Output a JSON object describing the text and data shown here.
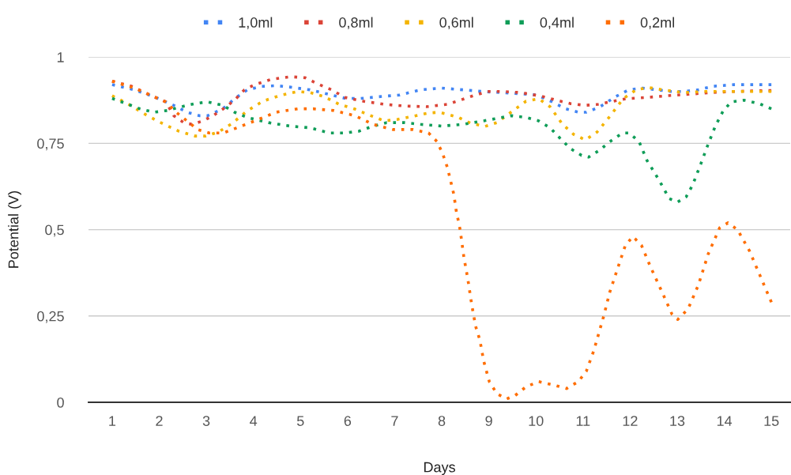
{
  "chart_data": {
    "type": "line",
    "xlabel": "Days",
    "ylabel": "Potential (V)",
    "xlim": [
      0.5,
      15.4
    ],
    "xticks": [
      1,
      2,
      3,
      4,
      5,
      6,
      7,
      8,
      9,
      10,
      11,
      12,
      13,
      14,
      15
    ],
    "ylim": [
      0,
      1
    ],
    "yticks": [
      {
        "value": 0,
        "label": "0"
      },
      {
        "value": 0.25,
        "label": "0,25"
      },
      {
        "value": 0.5,
        "label": "0,5"
      },
      {
        "value": 0.75,
        "label": "0,75"
      },
      {
        "value": 1,
        "label": "1"
      }
    ],
    "grid": "y",
    "legend": "top",
    "marker": "none",
    "line_style": "dotted",
    "series": [
      {
        "name": "1,0ml",
        "color": "#4285f4",
        "x": [
          1,
          1.47,
          1.89,
          2.31,
          2.59,
          2.86,
          3.03,
          3.35,
          3.61,
          3.87,
          4.18,
          4.48,
          4.77,
          5.2,
          5.66,
          5.96,
          6.28,
          6.66,
          7.11,
          7.55,
          8,
          8.45,
          8.89,
          9.48,
          10.01,
          10.35,
          10.63,
          10.9,
          11.07,
          11.35,
          11.69,
          11.97,
          12.27,
          12.57,
          12.86,
          13.14,
          13.45,
          13.75,
          14.2,
          14.65,
          15
        ],
        "values": [
          0.92,
          0.905,
          0.885,
          0.86,
          0.84,
          0.83,
          0.83,
          0.85,
          0.88,
          0.905,
          0.915,
          0.917,
          0.913,
          0.905,
          0.89,
          0.88,
          0.88,
          0.885,
          0.89,
          0.905,
          0.91,
          0.905,
          0.9,
          0.895,
          0.89,
          0.87,
          0.85,
          0.84,
          0.84,
          0.855,
          0.885,
          0.905,
          0.91,
          0.905,
          0.9,
          0.9,
          0.905,
          0.915,
          0.92,
          0.92,
          0.92
        ]
      },
      {
        "name": "0,8ml",
        "color": "#db4437",
        "x": [
          1,
          1.42,
          1.8,
          2.14,
          2.31,
          2.52,
          2.69,
          2.93,
          3.14,
          3.36,
          3.6,
          3.81,
          4.03,
          4.37,
          4.79,
          5.1,
          5.37,
          5.66,
          5.94,
          6.33,
          6.78,
          7.21,
          7.67,
          8.12,
          8.39,
          8.67,
          8.97,
          9.29,
          9.68,
          10.13,
          10.46,
          10.73,
          11.05,
          11.32,
          11.64,
          11.91,
          12.36,
          12.81,
          13.24,
          13.7,
          14.15,
          14.7,
          15
        ],
        "values": [
          0.93,
          0.915,
          0.89,
          0.87,
          0.83,
          0.81,
          0.805,
          0.815,
          0.83,
          0.85,
          0.875,
          0.905,
          0.92,
          0.935,
          0.943,
          0.94,
          0.922,
          0.905,
          0.883,
          0.872,
          0.863,
          0.858,
          0.856,
          0.863,
          0.875,
          0.888,
          0.9,
          0.9,
          0.897,
          0.886,
          0.874,
          0.865,
          0.86,
          0.863,
          0.872,
          0.879,
          0.883,
          0.888,
          0.892,
          0.897,
          0.9,
          0.902,
          0.903
        ]
      },
      {
        "name": "0,6ml",
        "color": "#f4b400",
        "x": [
          1,
          1.35,
          1.75,
          2.09,
          2.42,
          2.76,
          2.98,
          3.26,
          3.53,
          3.87,
          4.2,
          4.6,
          4.94,
          5.2,
          5.49,
          5.82,
          6.16,
          6.44,
          6.78,
          7.05,
          7.38,
          7.72,
          7.95,
          8.34,
          8.62,
          8.92,
          9.17,
          9.51,
          9.79,
          10.06,
          10.3,
          10.56,
          10.8,
          11.05,
          11.3,
          11.57,
          11.85,
          12.14,
          12.41,
          12.74,
          13.14,
          13.58,
          14.3,
          15
        ],
        "values": [
          0.888,
          0.863,
          0.83,
          0.806,
          0.785,
          0.771,
          0.771,
          0.783,
          0.806,
          0.844,
          0.872,
          0.89,
          0.9,
          0.897,
          0.886,
          0.863,
          0.849,
          0.833,
          0.815,
          0.819,
          0.828,
          0.838,
          0.84,
          0.826,
          0.808,
          0.799,
          0.81,
          0.844,
          0.872,
          0.879,
          0.856,
          0.806,
          0.776,
          0.76,
          0.783,
          0.828,
          0.879,
          0.906,
          0.911,
          0.904,
          0.897,
          0.9,
          0.9,
          0.9
        ]
      },
      {
        "name": "0,4ml",
        "color": "#0f9d58",
        "x": [
          1,
          1.3,
          1.59,
          1.89,
          2.17,
          2.44,
          2.76,
          3.03,
          3.35,
          3.6,
          3.87,
          4.32,
          4.77,
          5.2,
          5.62,
          5.94,
          6.24,
          6.54,
          6.83,
          7.21,
          7.55,
          8,
          8.45,
          8.89,
          9.48,
          9.79,
          10.06,
          10.3,
          10.51,
          10.73,
          10.97,
          11.12,
          11.35,
          11.57,
          11.84,
          11.98,
          12.19,
          12.36,
          12.52,
          12.67,
          12.83,
          13.01,
          13.19,
          13.33,
          13.5,
          13.65,
          13.81,
          13.98,
          14.15,
          14.42,
          14.74,
          15
        ],
        "values": [
          0.88,
          0.865,
          0.85,
          0.84,
          0.845,
          0.855,
          0.865,
          0.87,
          0.86,
          0.84,
          0.825,
          0.81,
          0.8,
          0.795,
          0.78,
          0.78,
          0.785,
          0.8,
          0.81,
          0.81,
          0.805,
          0.8,
          0.805,
          0.815,
          0.83,
          0.825,
          0.815,
          0.795,
          0.765,
          0.735,
          0.715,
          0.71,
          0.73,
          0.755,
          0.78,
          0.78,
          0.755,
          0.7,
          0.665,
          0.63,
          0.59,
          0.58,
          0.595,
          0.63,
          0.69,
          0.745,
          0.8,
          0.845,
          0.87,
          0.875,
          0.865,
          0.85
        ]
      },
      {
        "name": "0,2ml",
        "color": "#ff6d01",
        "x": [
          1,
          1.47,
          1.89,
          2.14,
          2.36,
          2.59,
          2.81,
          3.06,
          3.36,
          3.65,
          4.03,
          4.48,
          4.94,
          5.27,
          5.71,
          6.16,
          6.54,
          6.96,
          7.38,
          7.72,
          7.9,
          8.02,
          8.12,
          8.19,
          8.26,
          8.3,
          8.39,
          8.47,
          8.55,
          8.64,
          8.72,
          8.81,
          8.89,
          9.01,
          9.17,
          9.38,
          9.56,
          9.79,
          10.06,
          10.38,
          10.65,
          10.9,
          11.07,
          11.23,
          11.44,
          11.57,
          11.74,
          11.9,
          12.06,
          12.24,
          12.44,
          12.66,
          12.89,
          13.01,
          13.23,
          13.45,
          13.66,
          13.9,
          14.08,
          14.28,
          14.53,
          14.75,
          15
        ],
        "values": [
          0.93,
          0.91,
          0.885,
          0.87,
          0.84,
          0.815,
          0.79,
          0.78,
          0.78,
          0.795,
          0.815,
          0.84,
          0.85,
          0.85,
          0.845,
          0.83,
          0.805,
          0.79,
          0.79,
          0.78,
          0.755,
          0.72,
          0.68,
          0.64,
          0.6,
          0.56,
          0.5,
          0.42,
          0.36,
          0.28,
          0.22,
          0.18,
          0.12,
          0.06,
          0.025,
          0.01,
          0.02,
          0.045,
          0.06,
          0.05,
          0.04,
          0.06,
          0.09,
          0.15,
          0.25,
          0.32,
          0.39,
          0.455,
          0.48,
          0.455,
          0.39,
          0.325,
          0.255,
          0.24,
          0.27,
          0.34,
          0.43,
          0.505,
          0.52,
          0.5,
          0.44,
          0.37,
          0.29
        ]
      }
    ]
  }
}
